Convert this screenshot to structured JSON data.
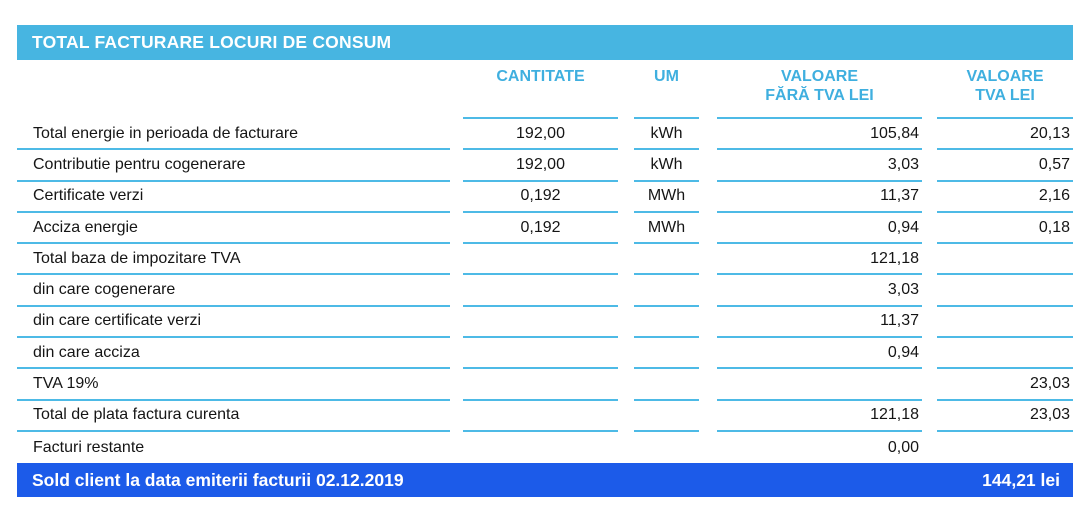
{
  "colors": {
    "header_bar": "#47B5E1",
    "rule_lines": "#4DBAE6",
    "column_header_text": "#3FAFDF",
    "footer_bar": "#1C5BE9",
    "body_text": "#151515"
  },
  "title_bar": {
    "label": "TOTAL FACTURARE LOCURI DE CONSUM"
  },
  "table": {
    "columns": [
      {
        "label": ""
      },
      {
        "label": "CANTITATE"
      },
      {
        "label": "UM"
      },
      {
        "label": "VALOARE\nFĂRĂ TVA LEI"
      },
      {
        "label": "VALOARE\nTVA LEI"
      }
    ],
    "rows": [
      {
        "label": "Total energie in perioada de facturare",
        "cantitate": "192,00",
        "um": "kWh",
        "valoare_fara_tva": "105,84",
        "valoare_tva": "20,13"
      },
      {
        "label": "Contributie pentru cogenerare",
        "cantitate": "192,00",
        "um": "kWh",
        "valoare_fara_tva": "3,03",
        "valoare_tva": "0,57"
      },
      {
        "label": "Certificate verzi",
        "cantitate": "0,192",
        "um": "MWh",
        "valoare_fara_tva": "11,37",
        "valoare_tva": "2,16"
      },
      {
        "label": "Acciza energie",
        "cantitate": "0,192",
        "um": "MWh",
        "valoare_fara_tva": "0,94",
        "valoare_tva": "0,18"
      },
      {
        "label": "Total baza de impozitare TVA",
        "cantitate": "",
        "um": "",
        "valoare_fara_tva": "121,18",
        "valoare_tva": ""
      },
      {
        "label": "din care cogenerare",
        "cantitate": "",
        "um": "",
        "valoare_fara_tva": "3,03",
        "valoare_tva": ""
      },
      {
        "label": "din care certificate verzi",
        "cantitate": "",
        "um": "",
        "valoare_fara_tva": "11,37",
        "valoare_tva": ""
      },
      {
        "label": "din care acciza",
        "cantitate": "",
        "um": "",
        "valoare_fara_tva": "0,94",
        "valoare_tva": ""
      },
      {
        "label": "TVA 19%",
        "cantitate": "",
        "um": "",
        "valoare_fara_tva": "",
        "valoare_tva": "23,03"
      },
      {
        "label": "Total de plata factura curenta",
        "cantitate": "",
        "um": "",
        "valoare_fara_tva": "121,18",
        "valoare_tva": "23,03"
      },
      {
        "label": "Facturi restante",
        "cantitate": "",
        "um": "",
        "valoare_fara_tva": "0,00",
        "valoare_tva": ""
      }
    ]
  },
  "footer_bar": {
    "label": "Sold client la data emiterii facturii 02.12.2019",
    "amount": "144,21 lei"
  }
}
